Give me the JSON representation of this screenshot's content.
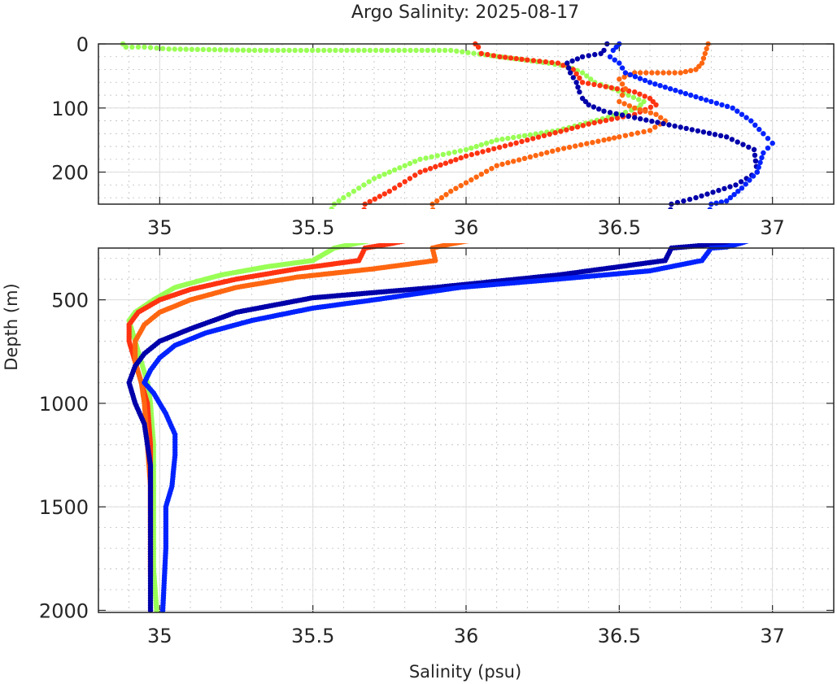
{
  "chart_data": {
    "type": "scatter",
    "title": "Argo Salinity: 2025-08-17",
    "xlabel": "Salinity (psu)",
    "ylabel": "Depth (m)",
    "grid": true,
    "legend": "none",
    "panels": [
      {
        "name": "upper",
        "xlim": [
          34.8,
          37.2
        ],
        "ylim": [
          250,
          0
        ],
        "xticks": [
          "35",
          "35.5",
          "36",
          "36.5",
          "37"
        ],
        "xtick_values": [
          35,
          35.5,
          36,
          36.5,
          37
        ],
        "yticks": [
          "0",
          "100",
          "200"
        ],
        "ytick_values": [
          0,
          100,
          200
        ]
      },
      {
        "name": "lower",
        "xlim": [
          34.8,
          37.2
        ],
        "ylim": [
          2010,
          250
        ],
        "xticks": [
          "35",
          "35.5",
          "36",
          "36.5",
          "37"
        ],
        "xtick_values": [
          35,
          35.5,
          36,
          36.5,
          37
        ],
        "yticks": [
          "500",
          "1000",
          "1500",
          "2000"
        ],
        "ytick_values": [
          500,
          1000,
          1500,
          2000
        ]
      }
    ],
    "series": [
      {
        "name": "profile-green",
        "color": "#99ff55",
        "points": [
          [
            34.88,
            0
          ],
          [
            34.89,
            5
          ],
          [
            34.95,
            5
          ],
          [
            35.03,
            8
          ],
          [
            35.31,
            10
          ],
          [
            35.95,
            10
          ],
          [
            36.27,
            30
          ],
          [
            36.33,
            35
          ],
          [
            36.38,
            45
          ],
          [
            36.42,
            60
          ],
          [
            36.48,
            70
          ],
          [
            36.53,
            80
          ],
          [
            36.58,
            90
          ],
          [
            36.56,
            100
          ],
          [
            36.5,
            110
          ],
          [
            36.3,
            135
          ],
          [
            36.1,
            150
          ],
          [
            36.0,
            165
          ],
          [
            35.85,
            180
          ],
          [
            35.7,
            210
          ],
          [
            35.6,
            240
          ],
          [
            35.57,
            250
          ],
          [
            35.5,
            310
          ],
          [
            35.35,
            340
          ],
          [
            35.2,
            380
          ],
          [
            35.05,
            440
          ],
          [
            34.98,
            500
          ],
          [
            34.92,
            560
          ],
          [
            34.9,
            600
          ],
          [
            34.92,
            700
          ],
          [
            34.94,
            800
          ],
          [
            34.96,
            900
          ],
          [
            34.97,
            1000
          ],
          [
            34.98,
            1200
          ],
          [
            34.98,
            1400
          ],
          [
            34.98,
            1600
          ],
          [
            34.98,
            1800
          ],
          [
            34.99,
            2000
          ]
        ]
      },
      {
        "name": "profile-red",
        "color": "#ff3311",
        "points": [
          [
            36.03,
            0
          ],
          [
            36.04,
            5
          ],
          [
            36.05,
            15
          ],
          [
            36.11,
            20
          ],
          [
            36.2,
            25
          ],
          [
            36.3,
            30
          ],
          [
            36.35,
            40
          ],
          [
            36.38,
            60
          ],
          [
            36.55,
            75
          ],
          [
            36.6,
            85
          ],
          [
            36.62,
            95
          ],
          [
            36.55,
            110
          ],
          [
            36.4,
            125
          ],
          [
            36.2,
            150
          ],
          [
            36.0,
            175
          ],
          [
            35.85,
            200
          ],
          [
            35.75,
            230
          ],
          [
            35.67,
            250
          ],
          [
            35.65,
            310
          ],
          [
            35.45,
            350
          ],
          [
            35.25,
            400
          ],
          [
            35.1,
            450
          ],
          [
            35.0,
            500
          ],
          [
            34.93,
            560
          ],
          [
            34.9,
            620
          ],
          [
            34.9,
            700
          ],
          [
            34.92,
            800
          ],
          [
            34.94,
            900
          ],
          [
            34.96,
            1000
          ],
          [
            34.97,
            1200
          ],
          [
            34.97,
            1400
          ],
          [
            34.97,
            1600
          ],
          [
            34.97,
            1800
          ]
        ]
      },
      {
        "name": "profile-orange",
        "color": "#ff6611",
        "points": [
          [
            36.79,
            0
          ],
          [
            36.78,
            15
          ],
          [
            36.77,
            30
          ],
          [
            36.75,
            40
          ],
          [
            36.7,
            45
          ],
          [
            36.55,
            45
          ],
          [
            36.5,
            55
          ],
          [
            36.52,
            70
          ],
          [
            36.51,
            80
          ],
          [
            36.5,
            90
          ],
          [
            36.55,
            100
          ],
          [
            36.62,
            110
          ],
          [
            36.65,
            120
          ],
          [
            36.6,
            135
          ],
          [
            36.5,
            145
          ],
          [
            36.45,
            150
          ],
          [
            36.3,
            165
          ],
          [
            36.1,
            190
          ],
          [
            35.95,
            230
          ],
          [
            35.89,
            250
          ],
          [
            35.9,
            310
          ],
          [
            35.7,
            350
          ],
          [
            35.45,
            390
          ],
          [
            35.25,
            440
          ],
          [
            35.1,
            500
          ],
          [
            35.0,
            560
          ],
          [
            34.95,
            620
          ],
          [
            34.92,
            700
          ],
          [
            34.92,
            800
          ],
          [
            34.94,
            900
          ],
          [
            34.95,
            1000
          ],
          [
            34.96,
            1200
          ],
          [
            34.97,
            1400
          ],
          [
            34.97,
            1600
          ],
          [
            34.97,
            1830
          ]
        ]
      },
      {
        "name": "profile-navy",
        "color": "#0000aa",
        "points": [
          [
            36.46,
            0
          ],
          [
            36.45,
            10
          ],
          [
            36.44,
            15
          ],
          [
            36.38,
            20
          ],
          [
            36.33,
            30
          ],
          [
            36.34,
            45
          ],
          [
            36.36,
            60
          ],
          [
            36.37,
            75
          ],
          [
            36.38,
            85
          ],
          [
            36.4,
            95
          ],
          [
            36.45,
            105
          ],
          [
            36.55,
            115
          ],
          [
            36.7,
            130
          ],
          [
            36.85,
            145
          ],
          [
            36.94,
            165
          ],
          [
            36.95,
            200
          ],
          [
            36.88,
            220
          ],
          [
            36.75,
            240
          ],
          [
            36.67,
            250
          ],
          [
            36.65,
            310
          ],
          [
            36.3,
            380
          ],
          [
            35.9,
            440
          ],
          [
            35.5,
            490
          ],
          [
            35.25,
            560
          ],
          [
            35.1,
            640
          ],
          [
            35.0,
            700
          ],
          [
            34.95,
            760
          ],
          [
            34.92,
            820
          ],
          [
            34.9,
            900
          ],
          [
            34.92,
            1000
          ],
          [
            34.95,
            1100
          ],
          [
            34.97,
            1300
          ],
          [
            34.97,
            1500
          ],
          [
            34.97,
            1800
          ],
          [
            34.97,
            2000
          ]
        ]
      },
      {
        "name": "profile-blue",
        "color": "#0022ff",
        "points": [
          [
            36.5,
            0
          ],
          [
            36.48,
            10
          ],
          [
            36.47,
            20
          ],
          [
            36.5,
            30
          ],
          [
            36.52,
            45
          ],
          [
            36.6,
            60
          ],
          [
            36.7,
            75
          ],
          [
            36.8,
            90
          ],
          [
            36.87,
            100
          ],
          [
            36.93,
            120
          ],
          [
            36.97,
            140
          ],
          [
            37.0,
            155
          ],
          [
            36.97,
            170
          ],
          [
            36.95,
            200
          ],
          [
            36.9,
            225
          ],
          [
            36.85,
            245
          ],
          [
            36.8,
            250
          ],
          [
            36.77,
            310
          ],
          [
            36.6,
            360
          ],
          [
            36.3,
            400
          ],
          [
            35.98,
            440
          ],
          [
            35.7,
            500
          ],
          [
            35.5,
            540
          ],
          [
            35.3,
            600
          ],
          [
            35.15,
            660
          ],
          [
            35.05,
            720
          ],
          [
            35.0,
            780
          ],
          [
            34.97,
            840
          ],
          [
            34.95,
            900
          ],
          [
            34.98,
            950
          ],
          [
            35.02,
            1050
          ],
          [
            35.05,
            1150
          ],
          [
            35.05,
            1250
          ],
          [
            35.04,
            1400
          ],
          [
            35.02,
            1500
          ],
          [
            35.02,
            1700
          ],
          [
            35.01,
            2000
          ]
        ]
      }
    ]
  }
}
